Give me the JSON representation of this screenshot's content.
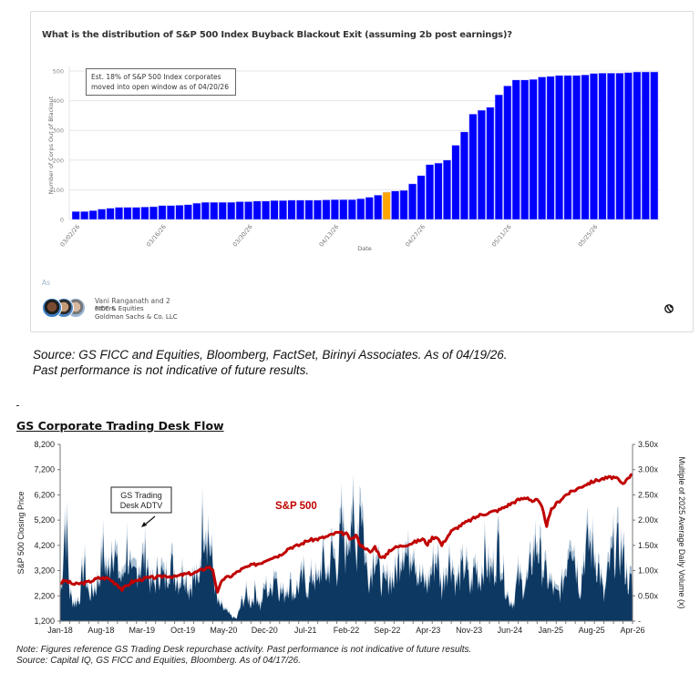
{
  "card": {
    "title": "What is the distribution of S&P 500 Index Buyback Blackout Exit (assuming 2b post earnings)?",
    "annotation_line1": "Est. 18% of S&P 500 Index corporates",
    "annotation_line2": "moved into open window as of 04/20/26",
    "as_label": "As",
    "author_name": "Vani Ranganath and 2",
    "author_others": "others",
    "author_dept": "FICC & Equities",
    "author_company": "Goldman Sachs & Co. LLC",
    "globe_icon": "globe-icon"
  },
  "source1": {
    "line1": "Source: GS FICC and Equities, Bloomberg, FactSet, Birinyi Associates. As of 04/19/26.",
    "line2": "Past performance is not indicative of future results."
  },
  "chart2_header": {
    "title": "GS Corporate Trading Desk Flow"
  },
  "note2": {
    "line1": "Note: Figures reference GS Trading Desk repurchase activity. Past performance is not indicative of future results.",
    "line2": "Source: Capital IQ, GS FICC and Equities, Bloomberg. As of 04/17/26."
  },
  "chart_data": [
    {
      "type": "bar",
      "title": "What is the distribution of S&P 500 Index Buyback Blackout Exit (assuming 2b post earnings)?",
      "xlabel": "Date",
      "ylabel": "Number of Corps Out of Blackout",
      "ylim": [
        0,
        500
      ],
      "yticks": [
        0,
        100,
        200,
        300,
        400,
        500
      ],
      "grid": true,
      "xtick_labels": [
        "03/02/26",
        "03/16/26",
        "03/30/26",
        "04/13/26",
        "04/27/26",
        "05/11/26",
        "05/25/26"
      ],
      "xtick_every": 10,
      "highlight_index": 36,
      "colors": {
        "bar": "#0000ff",
        "highlight": "#ffa500"
      },
      "values": [
        27,
        27,
        30,
        35,
        38,
        41,
        41,
        41,
        42,
        43,
        47,
        47,
        48,
        50,
        55,
        58,
        58,
        58,
        58,
        60,
        60,
        62,
        62,
        64,
        64,
        65,
        65,
        65,
        65,
        66,
        67,
        67,
        67,
        70,
        75,
        82,
        92,
        96,
        98,
        120,
        148,
        185,
        190,
        200,
        250,
        295,
        355,
        368,
        378,
        420,
        450,
        470,
        470,
        472,
        480,
        482,
        485,
        485,
        485,
        487,
        492,
        493,
        493,
        493,
        495,
        497,
        497,
        497
      ]
    },
    {
      "type": "area",
      "title": "GS Corporate Trading Desk Flow",
      "xlabel": "",
      "ylabel": "S&P 500 Closing Price",
      "y2label": "Multiple of 2025 Average Daily Volume (x)",
      "ylim": [
        1200,
        8200
      ],
      "yticks": [
        1200,
        2200,
        3200,
        4200,
        5200,
        6200,
        7200,
        8200
      ],
      "y2lim": [
        0,
        3.5
      ],
      "y2ticks": [
        "-",
        "0.50x",
        "1.00x",
        "1.50x",
        "2.00x",
        "2.50x",
        "3.00x",
        "3.50x"
      ],
      "xtick_labels": [
        "Jan-18",
        "Aug-18",
        "Mar-19",
        "Oct-19",
        "May-20",
        "Dec-20",
        "Jul-21",
        "Feb-22",
        "Sep-22",
        "Apr-23",
        "Nov-23",
        "Jun-24",
        "Jan-25",
        "Aug-25",
        "Apr-26"
      ],
      "annotations": [
        "GS Trading Desk ADTV",
        "S&P 500"
      ],
      "colors": {
        "adtv": "#0d3862",
        "adtv_light": "#a9bfd3",
        "sp500": "#c00000"
      },
      "series": [
        {
          "name": "S&P 500",
          "axis": "left",
          "points": [
            [
              0,
              2700
            ],
            [
              1,
              2800
            ],
            [
              3,
              2650
            ],
            [
              6,
              2750
            ],
            [
              8,
              2900
            ],
            [
              10,
              2900
            ],
            [
              12,
              2650
            ],
            [
              13,
              2450
            ],
            [
              15,
              2750
            ],
            [
              18,
              2900
            ],
            [
              21,
              2950
            ],
            [
              22,
              3000
            ],
            [
              24,
              2950
            ],
            [
              26,
              3050
            ],
            [
              28,
              3100
            ],
            [
              30,
              3250
            ],
            [
              31,
              3350
            ],
            [
              32,
              3250
            ],
            [
              33,
              2300
            ],
            [
              34,
              2850
            ],
            [
              36,
              3000
            ],
            [
              38,
              3250
            ],
            [
              40,
              3400
            ],
            [
              42,
              3500
            ],
            [
              44,
              3700
            ],
            [
              46,
              3800
            ],
            [
              48,
              4100
            ],
            [
              50,
              4200
            ],
            [
              52,
              4400
            ],
            [
              54,
              4450
            ],
            [
              56,
              4550
            ],
            [
              58,
              4700
            ],
            [
              60,
              4650
            ],
            [
              61,
              4400
            ],
            [
              62,
              4600
            ],
            [
              63,
              4200
            ],
            [
              64,
              4100
            ],
            [
              65,
              3900
            ],
            [
              66,
              4150
            ],
            [
              67,
              3800
            ],
            [
              68,
              3700
            ],
            [
              69,
              4000
            ],
            [
              70,
              4100
            ],
            [
              72,
              4200
            ],
            [
              74,
              4300
            ],
            [
              76,
              4450
            ],
            [
              77,
              4250
            ],
            [
              78,
              4500
            ],
            [
              79,
              4550
            ],
            [
              80,
              4200
            ],
            [
              81,
              4500
            ],
            [
              82,
              4750
            ],
            [
              84,
              5000
            ],
            [
              86,
              5200
            ],
            [
              88,
              5400
            ],
            [
              90,
              5500
            ],
            [
              92,
              5600
            ],
            [
              94,
              5800
            ],
            [
              96,
              6000
            ],
            [
              98,
              6100
            ],
            [
              99,
              5950
            ],
            [
              100,
              6000
            ],
            [
              101,
              5700
            ],
            [
              102,
              5000
            ],
            [
              103,
              5600
            ],
            [
              104,
              5850
            ],
            [
              106,
              6200
            ],
            [
              108,
              6400
            ],
            [
              110,
              6600
            ],
            [
              112,
              6750
            ],
            [
              114,
              6850
            ],
            [
              116,
              6900
            ],
            [
              117,
              6800
            ],
            [
              118,
              6600
            ],
            [
              119,
              6900
            ],
            [
              120,
              7000
            ]
          ]
        },
        {
          "name": "GS Trading Desk ADTV",
          "axis": "right",
          "points": [
            [
              0,
              0.5
            ],
            [
              0.5,
              1.2
            ],
            [
              1,
              2.3
            ],
            [
              1.5,
              1.8
            ],
            [
              2,
              0.6
            ],
            [
              3,
              0.4
            ],
            [
              4,
              0.5
            ],
            [
              5,
              1.3
            ],
            [
              6,
              0.6
            ],
            [
              7,
              0.7
            ],
            [
              8,
              0.9
            ],
            [
              9,
              1.6
            ],
            [
              10,
              1.0
            ],
            [
              11,
              1.9
            ],
            [
              12,
              1.2
            ],
            [
              13,
              0.9
            ],
            [
              14,
              1.7
            ],
            [
              15,
              0.9
            ],
            [
              16,
              1.2
            ],
            [
              17,
              1.3
            ],
            [
              18,
              1.5
            ],
            [
              19,
              0.8
            ],
            [
              20,
              0.9
            ],
            [
              21,
              1.2
            ],
            [
              22,
              0.9
            ],
            [
              23,
              1.4
            ],
            [
              24,
              1.1
            ],
            [
              25,
              0.9
            ],
            [
              26,
              1.2
            ],
            [
              27,
              0.7
            ],
            [
              28,
              1.0
            ],
            [
              29,
              0.8
            ],
            [
              30,
              2.5
            ],
            [
              31,
              2.0
            ],
            [
              32,
              1.2
            ],
            [
              33,
              0.4
            ],
            [
              34,
              0.3
            ],
            [
              35,
              0.2
            ],
            [
              36,
              0.1
            ],
            [
              37,
              0.05
            ],
            [
              38,
              0.4
            ],
            [
              39,
              0.6
            ],
            [
              40,
              0.4
            ],
            [
              41,
              0.7
            ],
            [
              42,
              0.3
            ],
            [
              43,
              0.8
            ],
            [
              44,
              0.6
            ],
            [
              45,
              1.2
            ],
            [
              46,
              0.7
            ],
            [
              47,
              0.6
            ],
            [
              48,
              0.9
            ],
            [
              49,
              0.6
            ],
            [
              50,
              0.8
            ],
            [
              51,
              1.0
            ],
            [
              52,
              0.7
            ],
            [
              53,
              1.1
            ],
            [
              54,
              0.8
            ],
            [
              55,
              1.4
            ],
            [
              56,
              1.0
            ],
            [
              57,
              1.6
            ],
            [
              58,
              1.2
            ],
            [
              59,
              2.1
            ],
            [
              60,
              1.5
            ],
            [
              61,
              2.7
            ],
            [
              62,
              1.4
            ],
            [
              63,
              3.15
            ],
            [
              64,
              1.3
            ],
            [
              65,
              1.0
            ],
            [
              66,
              1.7
            ],
            [
              67,
              1.0
            ],
            [
              68,
              0.8
            ],
            [
              69,
              1.0
            ],
            [
              70,
              0.9
            ],
            [
              71,
              1.4
            ],
            [
              72,
              1.8
            ],
            [
              73,
              1.4
            ],
            [
              74,
              1.9
            ],
            [
              75,
              1.0
            ],
            [
              76,
              0.9
            ],
            [
              77,
              0.8
            ],
            [
              78,
              1.2
            ],
            [
              79,
              1.5
            ],
            [
              80,
              0.7
            ],
            [
              81,
              1.3
            ],
            [
              82,
              1.4
            ],
            [
              83,
              0.8
            ],
            [
              84,
              1.1
            ],
            [
              85,
              1.3
            ],
            [
              86,
              0.7
            ],
            [
              87,
              1.3
            ],
            [
              88,
              0.9
            ],
            [
              89,
              1.5
            ],
            [
              90,
              1.1
            ],
            [
              91,
              1.2
            ],
            [
              92,
              1.8
            ],
            [
              93,
              1.0
            ],
            [
              94,
              0.5
            ],
            [
              95,
              0.4
            ],
            [
              96,
              1.0
            ],
            [
              97,
              0.8
            ],
            [
              98,
              0.9
            ],
            [
              99,
              1.5
            ],
            [
              100,
              1.8
            ],
            [
              101,
              1.3
            ],
            [
              102,
              1.0
            ],
            [
              103,
              0.8
            ],
            [
              104,
              0.6
            ],
            [
              105,
              0.7
            ],
            [
              106,
              1.2
            ],
            [
              107,
              2.25
            ],
            [
              108,
              1.4
            ],
            [
              109,
              0.7
            ],
            [
              110,
              1.6
            ],
            [
              111,
              1.8
            ],
            [
              112,
              1.5
            ],
            [
              113,
              1.2
            ],
            [
              114,
              0.5
            ],
            [
              115,
              1.2
            ],
            [
              116,
              1.6
            ],
            [
              117,
              1.7
            ],
            [
              118,
              1.5
            ],
            [
              119,
              0.9
            ],
            [
              120,
              0.9
            ]
          ]
        }
      ],
      "x_domain": [
        0,
        120
      ]
    }
  ]
}
